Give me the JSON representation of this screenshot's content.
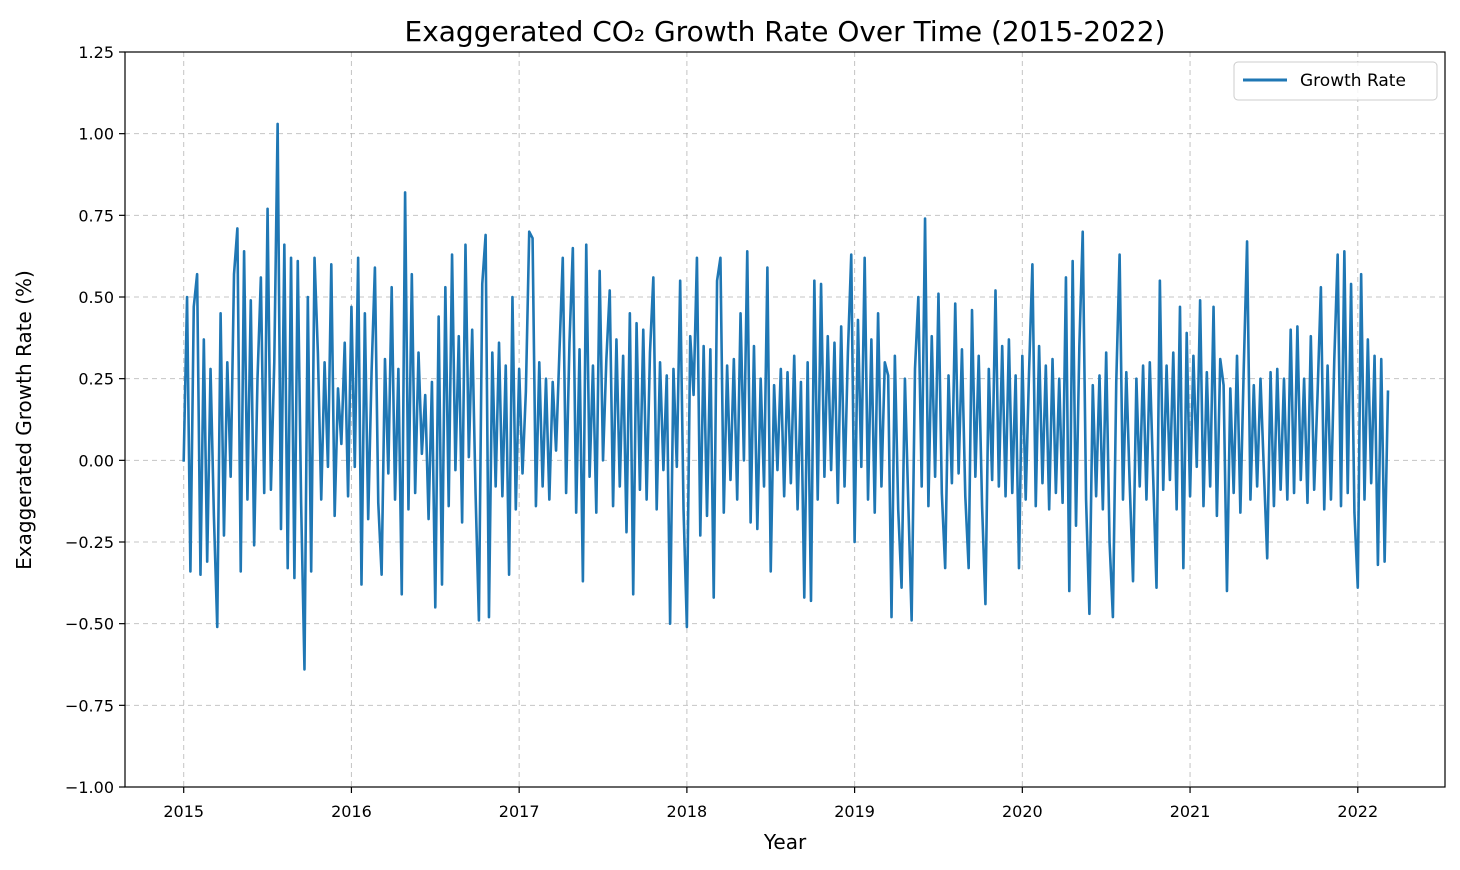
{
  "chart_data": {
    "type": "line",
    "title": "Exaggerated CO₂ Growth Rate Over Time (2015-2022)",
    "xlabel": "Year",
    "ylabel": "Exaggerated Growth Rate (%)",
    "xlim": [
      2014.65,
      2022.52
    ],
    "ylim": [
      -1.0,
      1.25
    ],
    "x_ticks": [
      2015,
      2016,
      2017,
      2018,
      2019,
      2020,
      2021,
      2022
    ],
    "x_tick_labels": [
      "2015",
      "2016",
      "2017",
      "2018",
      "2019",
      "2020",
      "2021",
      "2022"
    ],
    "y_ticks": [
      -1.0,
      -0.75,
      -0.5,
      -0.25,
      0.0,
      0.25,
      0.5,
      0.75,
      1.0,
      1.25
    ],
    "y_tick_labels": [
      "−1.00",
      "−0.75",
      "−0.50",
      "−0.25",
      "0.00",
      "0.25",
      "0.50",
      "0.75",
      "1.00",
      "1.25"
    ],
    "grid": true,
    "legend_position": "top-right",
    "series": [
      {
        "name": "Growth Rate",
        "color": "#1f77b4",
        "x": [
          2015.0,
          2015.02,
          2015.04,
          2015.06,
          2015.08,
          2015.1,
          2015.12,
          2015.14,
          2015.16,
          2015.18,
          2015.2,
          2015.22,
          2015.24,
          2015.26,
          2015.28,
          2015.3,
          2015.32,
          2015.34,
          2015.36,
          2015.38,
          2015.4,
          2015.42,
          2015.44,
          2015.46,
          2015.48,
          2015.5,
          2015.52,
          2015.54,
          2015.56,
          2015.58,
          2015.6,
          2015.62,
          2015.64,
          2015.66,
          2015.68,
          2015.7,
          2015.72,
          2015.74,
          2015.76,
          2015.78,
          2015.8,
          2015.82,
          2015.84,
          2015.86,
          2015.88,
          2015.9,
          2015.92,
          2015.94,
          2015.96,
          2015.98,
          2016.0,
          2016.02,
          2016.04,
          2016.06,
          2016.08,
          2016.1,
          2016.12,
          2016.14,
          2016.16,
          2016.18,
          2016.2,
          2016.22,
          2016.24,
          2016.26,
          2016.28,
          2016.3,
          2016.32,
          2016.34,
          2016.36,
          2016.38,
          2016.4,
          2016.42,
          2016.44,
          2016.46,
          2016.48,
          2016.5,
          2016.52,
          2016.54,
          2016.56,
          2016.58,
          2016.6,
          2016.62,
          2016.64,
          2016.66,
          2016.68,
          2016.7,
          2016.72,
          2016.74,
          2016.76,
          2016.78,
          2016.8,
          2016.82,
          2016.84,
          2016.86,
          2016.88,
          2016.9,
          2016.92,
          2016.94,
          2016.96,
          2016.98,
          2017.0,
          2017.02,
          2017.04,
          2017.06,
          2017.08,
          2017.1,
          2017.12,
          2017.14,
          2017.16,
          2017.18,
          2017.2,
          2017.22,
          2017.24,
          2017.26,
          2017.28,
          2017.3,
          2017.32,
          2017.34,
          2017.36,
          2017.38,
          2017.4,
          2017.42,
          2017.44,
          2017.46,
          2017.48,
          2017.5,
          2017.52,
          2017.54,
          2017.56,
          2017.58,
          2017.6,
          2017.62,
          2017.64,
          2017.66,
          2017.68,
          2017.7,
          2017.72,
          2017.74,
          2017.76,
          2017.78,
          2017.8,
          2017.82,
          2017.84,
          2017.86,
          2017.88,
          2017.9,
          2017.92,
          2017.94,
          2017.96,
          2017.98,
          2018.0,
          2018.02,
          2018.04,
          2018.06,
          2018.08,
          2018.1,
          2018.12,
          2018.14,
          2018.16,
          2018.18,
          2018.2,
          2018.22,
          2018.24,
          2018.26,
          2018.28,
          2018.3,
          2018.32,
          2018.34,
          2018.36,
          2018.38,
          2018.4,
          2018.42,
          2018.44,
          2018.46,
          2018.48,
          2018.5,
          2018.52,
          2018.54,
          2018.56,
          2018.58,
          2018.6,
          2018.62,
          2018.64,
          2018.66,
          2018.68,
          2018.7,
          2018.72,
          2018.74,
          2018.76,
          2018.78,
          2018.8,
          2018.82,
          2018.84,
          2018.86,
          2018.88,
          2018.9,
          2018.92,
          2018.94,
          2018.96,
          2018.98,
          2019.0,
          2019.02,
          2019.04,
          2019.06,
          2019.08,
          2019.1,
          2019.12,
          2019.14,
          2019.16,
          2019.18,
          2019.2,
          2019.22,
          2019.24,
          2019.26,
          2019.28,
          2019.3,
          2019.32,
          2019.34,
          2019.36,
          2019.38,
          2019.4,
          2019.42,
          2019.44,
          2019.46,
          2019.48,
          2019.5,
          2019.52,
          2019.54,
          2019.56,
          2019.58,
          2019.6,
          2019.62,
          2019.64,
          2019.66,
          2019.68,
          2019.7,
          2019.72,
          2019.74,
          2019.76,
          2019.78,
          2019.8,
          2019.82,
          2019.84,
          2019.86,
          2019.88,
          2019.9,
          2019.92,
          2019.94,
          2019.96,
          2019.98,
          2020.0,
          2020.02,
          2020.04,
          2020.06,
          2020.08,
          2020.1,
          2020.12,
          2020.14,
          2020.16,
          2020.18,
          2020.2,
          2020.22,
          2020.24,
          2020.26,
          2020.28,
          2020.3,
          2020.32,
          2020.34,
          2020.36,
          2020.38,
          2020.4,
          2020.42,
          2020.44,
          2020.46,
          2020.48,
          2020.5,
          2020.52,
          2020.54,
          2020.56,
          2020.58,
          2020.6,
          2020.62,
          2020.64,
          2020.66,
          2020.68,
          2020.7,
          2020.72,
          2020.74,
          2020.76,
          2020.78,
          2020.8,
          2020.82,
          2020.84,
          2020.86,
          2020.88,
          2020.9,
          2020.92,
          2020.94,
          2020.96,
          2020.98,
          2021.0,
          2021.02,
          2021.04,
          2021.06,
          2021.08,
          2021.1,
          2021.12,
          2021.14,
          2021.16,
          2021.18,
          2021.2,
          2021.22,
          2021.24,
          2021.26,
          2021.28,
          2021.3,
          2021.32,
          2021.34,
          2021.36,
          2021.38,
          2021.4,
          2021.42,
          2021.44,
          2021.46,
          2021.48,
          2021.5,
          2021.52,
          2021.54,
          2021.56,
          2021.58,
          2021.6,
          2021.62,
          2021.64,
          2021.66,
          2021.68,
          2021.7,
          2021.72,
          2021.74,
          2021.76,
          2021.78,
          2021.8,
          2021.82,
          2021.84,
          2021.86,
          2021.88,
          2021.9,
          2021.92,
          2021.94,
          2021.96,
          2021.98,
          2022.0,
          2022.02,
          2022.04,
          2022.06,
          2022.08,
          2022.1,
          2022.12,
          2022.14,
          2022.16,
          2022.18
        ],
        "values": [
          0.0,
          0.5,
          -0.34,
          0.47,
          0.57,
          -0.35,
          0.37,
          -0.31,
          0.28,
          -0.17,
          -0.51,
          0.45,
          -0.23,
          0.3,
          -0.05,
          0.57,
          0.71,
          -0.34,
          0.64,
          -0.12,
          0.49,
          -0.26,
          0.25,
          0.56,
          -0.1,
          0.77,
          -0.09,
          0.3,
          1.03,
          -0.21,
          0.66,
          -0.33,
          0.62,
          -0.36,
          0.61,
          -0.13,
          -0.64,
          0.5,
          -0.34,
          0.62,
          0.33,
          -0.12,
          0.3,
          -0.02,
          0.6,
          -0.17,
          0.22,
          0.05,
          0.36,
          -0.11,
          0.47,
          -0.02,
          0.62,
          -0.38,
          0.45,
          -0.18,
          0.27,
          0.59,
          -0.13,
          -0.35,
          0.31,
          -0.04,
          0.53,
          -0.12,
          0.28,
          -0.41,
          0.82,
          -0.15,
          0.57,
          -0.1,
          0.33,
          0.02,
          0.2,
          -0.18,
          0.24,
          -0.45,
          0.44,
          -0.38,
          0.53,
          -0.14,
          0.63,
          -0.03,
          0.38,
          -0.19,
          0.66,
          0.01,
          0.4,
          -0.1,
          -0.49,
          0.54,
          0.69,
          -0.48,
          0.33,
          -0.08,
          0.36,
          -0.11,
          0.29,
          -0.35,
          0.5,
          -0.15,
          0.28,
          -0.04,
          0.21,
          0.7,
          0.68,
          -0.14,
          0.3,
          -0.08,
          0.25,
          -0.12,
          0.24,
          0.03,
          0.33,
          0.62,
          -0.1,
          0.36,
          0.65,
          -0.16,
          0.34,
          -0.37,
          0.66,
          -0.05,
          0.29,
          -0.16,
          0.58,
          0.0,
          0.31,
          0.52,
          -0.14,
          0.37,
          -0.08,
          0.32,
          -0.22,
          0.45,
          -0.41,
          0.42,
          -0.09,
          0.4,
          -0.12,
          0.33,
          0.56,
          -0.15,
          0.3,
          -0.03,
          0.26,
          -0.5,
          0.28,
          -0.02,
          0.55,
          -0.15,
          -0.51,
          0.38,
          0.2,
          0.62,
          -0.23,
          0.35,
          -0.17,
          0.34,
          -0.42,
          0.55,
          0.62,
          -0.16,
          0.29,
          -0.06,
          0.31,
          -0.12,
          0.45,
          0.0,
          0.64,
          -0.19,
          0.35,
          -0.21,
          0.25,
          -0.08,
          0.59,
          -0.34,
          0.23,
          -0.03,
          0.28,
          -0.11,
          0.27,
          -0.07,
          0.32,
          -0.15,
          0.24,
          -0.42,
          0.3,
          -0.43,
          0.55,
          -0.12,
          0.54,
          -0.05,
          0.38,
          -0.03,
          0.36,
          -0.13,
          0.41,
          -0.08,
          0.33,
          0.63,
          -0.25,
          0.43,
          -0.02,
          0.62,
          -0.12,
          0.37,
          -0.16,
          0.45,
          -0.08,
          0.3,
          0.26,
          -0.48,
          0.32,
          -0.15,
          -0.39,
          0.25,
          -0.13,
          -0.49,
          0.28,
          0.5,
          -0.08,
          0.74,
          -0.14,
          0.38,
          -0.05,
          0.51,
          -0.1,
          -0.33,
          0.26,
          -0.07,
          0.48,
          -0.04,
          0.34,
          -0.11,
          -0.33,
          0.46,
          -0.05,
          0.32,
          -0.14,
          -0.44,
          0.28,
          -0.06,
          0.52,
          -0.08,
          0.35,
          -0.11,
          0.37,
          -0.1,
          0.26,
          -0.33,
          0.32,
          -0.12,
          0.27,
          0.6,
          -0.14,
          0.35,
          -0.07,
          0.29,
          -0.15,
          0.31,
          -0.1,
          0.25,
          -0.13,
          0.56,
          -0.4,
          0.61,
          -0.2,
          0.35,
          0.7,
          -0.12,
          -0.47,
          0.23,
          -0.11,
          0.26,
          -0.15,
          0.33,
          -0.25,
          -0.48,
          0.24,
          0.63,
          -0.12,
          0.27,
          -0.07,
          -0.37,
          0.25,
          -0.08,
          0.29,
          -0.12,
          0.3,
          -0.05,
          -0.39,
          0.55,
          -0.09,
          0.29,
          -0.06,
          0.33,
          -0.15,
          0.47,
          -0.33,
          0.39,
          -0.11,
          0.32,
          -0.02,
          0.49,
          -0.14,
          0.27,
          -0.08,
          0.47,
          -0.17,
          0.31,
          0.23,
          -0.4,
          0.22,
          -0.1,
          0.32,
          -0.16,
          0.28,
          0.67,
          -0.12,
          0.23,
          -0.08,
          0.25,
          -0.03,
          -0.3,
          0.27,
          -0.14,
          0.28,
          -0.09,
          0.25,
          -0.12,
          0.4,
          -0.1,
          0.41,
          -0.06,
          0.25,
          -0.13,
          0.38,
          -0.09,
          0.2,
          0.53,
          -0.15,
          0.29,
          -0.12,
          0.31,
          0.63,
          -0.14,
          0.64,
          -0.1,
          0.54,
          -0.16,
          -0.39,
          0.57,
          -0.12,
          0.37,
          -0.07,
          0.32,
          -0.32,
          0.31,
          -0.31,
          0.21
        ]
      }
    ]
  },
  "colors": {
    "series_line": "#1f77b4",
    "grid": "#b0b0b0",
    "axes": "#000000",
    "legend_border": "#cccccc",
    "background": "#ffffff"
  }
}
